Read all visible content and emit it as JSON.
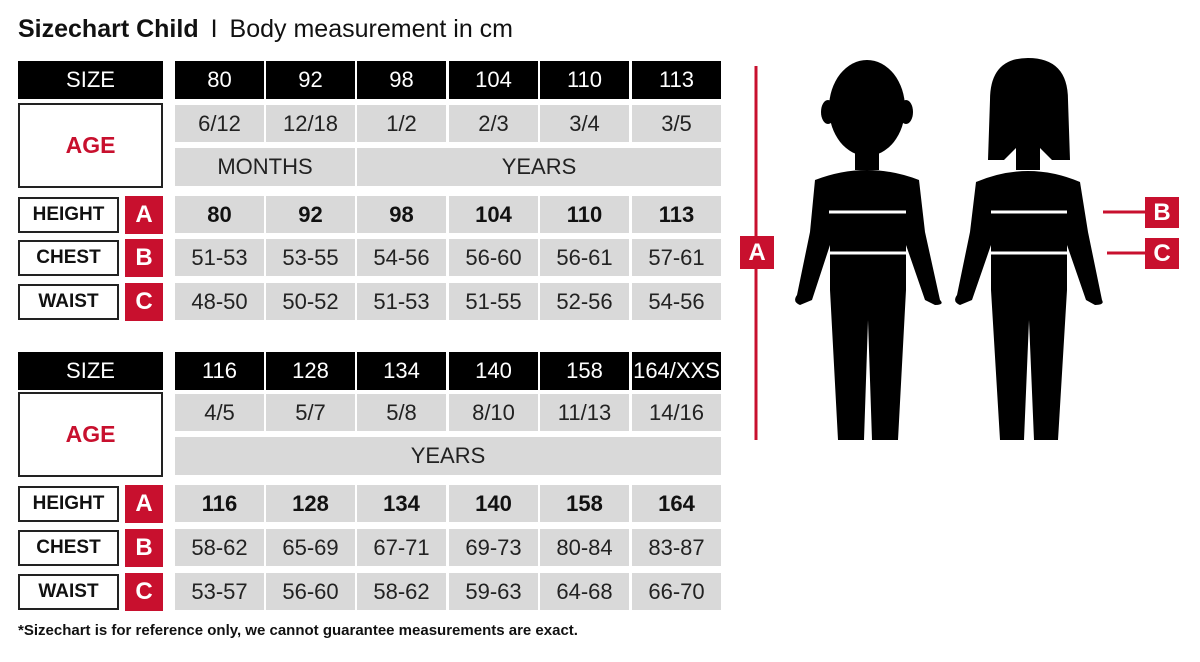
{
  "title": {
    "main": "Sizechart Child",
    "separator": "I",
    "sub": "Body measurement in cm"
  },
  "labels": {
    "size": "SIZE",
    "age": "AGE",
    "height": "HEIGHT",
    "chest": "CHEST",
    "waist": "WAIST",
    "height_letter": "A",
    "chest_letter": "B",
    "waist_letter": "C"
  },
  "tables": [
    {
      "sizes": [
        "80",
        "92",
        "98",
        "104",
        "110",
        "113"
      ],
      "age": [
        "6/12",
        "12/18",
        "1/2",
        "2/3",
        "3/4",
        "3/5"
      ],
      "age_units": [
        {
          "label": "MONTHS",
          "span": 2
        },
        {
          "label": "YEARS",
          "span": 4
        }
      ],
      "height": [
        "80",
        "92",
        "98",
        "104",
        "110",
        "113"
      ],
      "chest": [
        "51-53",
        "53-55",
        "54-56",
        "56-60",
        "56-61",
        "57-61"
      ],
      "waist": [
        "48-50",
        "50-52",
        "51-53",
        "51-55",
        "52-56",
        "54-56"
      ]
    },
    {
      "sizes": [
        "116",
        "128",
        "134",
        "140",
        "158",
        "164/XXS"
      ],
      "age": [
        "4/5",
        "5/7",
        "5/8",
        "8/10",
        "11/13",
        "14/16"
      ],
      "age_units": [
        {
          "label": "YEARS",
          "span": 6
        }
      ],
      "height": [
        "116",
        "128",
        "134",
        "140",
        "158",
        "164"
      ],
      "chest": [
        "58-62",
        "65-69",
        "67-71",
        "69-73",
        "80-84",
        "83-87"
      ],
      "waist": [
        "53-57",
        "56-60",
        "58-62",
        "59-63",
        "64-68",
        "66-70"
      ]
    }
  ],
  "figure": {
    "height_marker": "A",
    "chest_marker": "B",
    "waist_marker": "C"
  },
  "footnote": "*Sizechart is for reference only, we cannot guarantee measurements are exact.",
  "colors": {
    "accent_red": "#c8102e",
    "cell_gray": "#d9d9d9",
    "header_black": "#000000"
  }
}
